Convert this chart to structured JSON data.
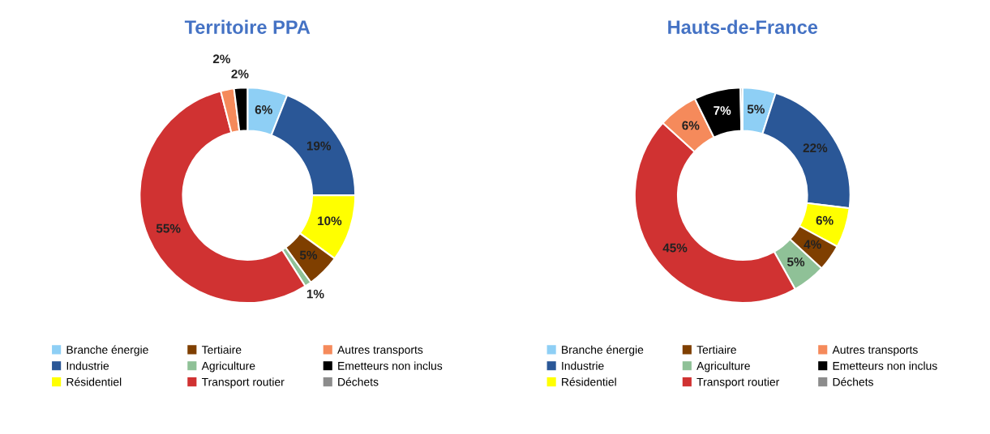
{
  "chart_data": [
    {
      "type": "donut",
      "title": "Territoire PPA",
      "categories": [
        "Branche énergie",
        "Industrie",
        "Résidentiel",
        "Tertiaire",
        "Agriculture",
        "Transport routier",
        "Autres transports",
        "Emetteurs non inclus",
        "Déchets"
      ],
      "values": [
        6,
        19,
        10,
        5,
        1,
        55,
        2,
        2,
        0
      ],
      "value_labels": [
        "6%",
        "19%",
        "10%",
        "5%",
        "1%",
        "55%",
        "2%",
        "2%",
        null
      ],
      "colors": [
        "#8ecff5",
        "#2a5797",
        "#ffff00",
        "#7f3f00",
        "#8fc197",
        "#d03232",
        "#f58a5b",
        "#000000",
        "#8c8c8c"
      ],
      "legend": "bottom"
    },
    {
      "type": "donut",
      "title": "Hauts-de-France",
      "categories": [
        "Branche énergie",
        "Industrie",
        "Résidentiel",
        "Tertiaire",
        "Agriculture",
        "Transport routier",
        "Autres transports",
        "Emetteurs non inclus",
        "Déchets"
      ],
      "values": [
        5,
        22,
        6,
        4,
        5,
        45,
        6,
        7,
        0.3
      ],
      "value_labels": [
        "5%",
        "22%",
        "6%",
        "4%",
        "5%",
        "45%",
        "6%",
        "7%",
        null
      ],
      "colors": [
        "#8ecff5",
        "#2a5797",
        "#ffff00",
        "#7f3f00",
        "#8fc197",
        "#d03232",
        "#f58a5b",
        "#000000",
        "#8c8c8c"
      ],
      "legend": "bottom"
    }
  ]
}
